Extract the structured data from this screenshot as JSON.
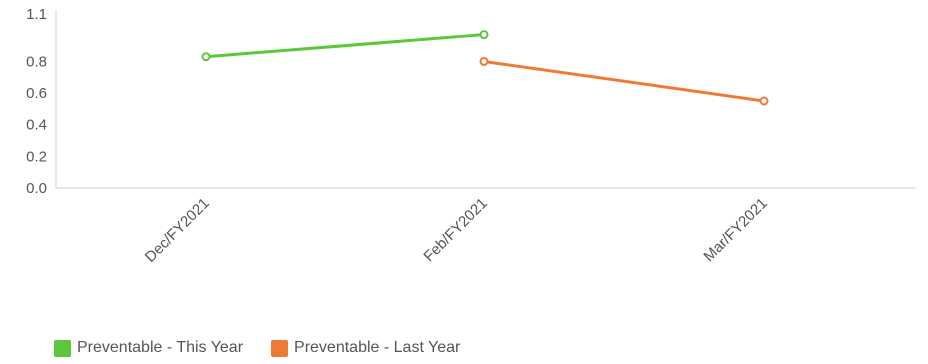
{
  "chart_data": {
    "type": "line",
    "title": "",
    "xlabel": "",
    "ylabel": "",
    "categories": [
      "Dec/FY2021",
      "Feb/FY2021",
      "Mar/FY2021"
    ],
    "ylim": [
      0,
      1.1
    ],
    "yticks": [
      "0.0",
      "0.2",
      "0.4",
      "0.6",
      "0.8",
      "1.1"
    ],
    "grid": false,
    "legend_position": "bottom-left",
    "series": [
      {
        "name": "Preventable - This Year",
        "color": "#5cc73a",
        "values": [
          0.83,
          0.97,
          null
        ]
      },
      {
        "name": "Preventable - Last Year",
        "color": "#ef7a35",
        "values": [
          null,
          0.8,
          0.55
        ]
      }
    ]
  }
}
